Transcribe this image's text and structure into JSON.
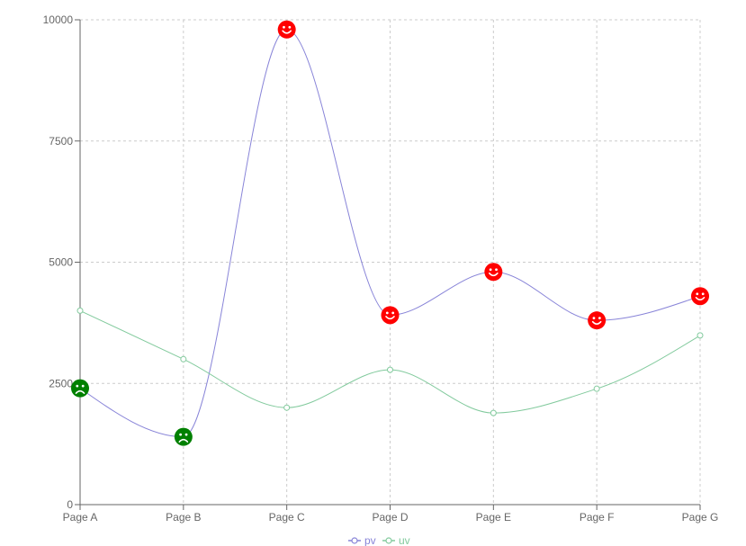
{
  "chart_data": {
    "type": "line",
    "curve": "monotone",
    "categories": [
      "Page A",
      "Page B",
      "Page C",
      "Page D",
      "Page E",
      "Page F",
      "Page G"
    ],
    "ylim": [
      0,
      10000
    ],
    "yticks": [
      0,
      2500,
      5000,
      7500,
      10000
    ],
    "grid": true,
    "legend_position": "bottom-center",
    "series": [
      {
        "name": "pv",
        "color": "#8884d8",
        "values": [
          2400,
          1398,
          9800,
          3908,
          4800,
          3800,
          4300
        ],
        "marker": "face",
        "happy_threshold": 2500,
        "happy_color": "#ff0000",
        "sad_color": "#008000"
      },
      {
        "name": "uv",
        "color": "#82ca9d",
        "values": [
          4000,
          3000,
          2000,
          2780,
          1890,
          2390,
          3490
        ],
        "marker": "circle"
      }
    ]
  }
}
